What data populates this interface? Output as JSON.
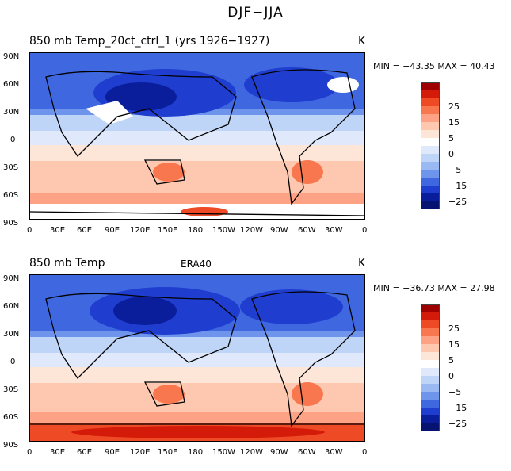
{
  "figure_title": "DJF−JJA",
  "panels": [
    {
      "title": "850  mb Temp_20ct_ctrl_1 (yrs 1926−1927)",
      "center": "",
      "unit": "K",
      "minmax": "MIN = −43.35  MAX =   40.43"
    },
    {
      "title": "850  mb Temp",
      "center": "ERA40",
      "unit": "K",
      "minmax": "MIN = −36.73  MAX =   27.98"
    }
  ],
  "lat_labels": [
    "90N",
    "60N",
    "30N",
    "0",
    "30S",
    "60S",
    "90S"
  ],
  "lon_labels": [
    "0",
    "30E",
    "60E",
    "90E",
    "120E",
    "150E",
    "180",
    "150W",
    "120W",
    "90W",
    "60W",
    "30W",
    "0"
  ],
  "colorbar": {
    "labels": [
      "25",
      "15",
      "5",
      "0",
      "−5",
      "−15",
      "−25"
    ],
    "colors": [
      "#9e0000",
      "#d41b0a",
      "#ee4a26",
      "#f8774f",
      "#fda285",
      "#fec8b0",
      "#fde6d8",
      "#ffffff",
      "#dfe9fb",
      "#bfd5f8",
      "#9ab9f2",
      "#6e95eb",
      "#3f67e0",
      "#1f3dcf",
      "#0a1e9c",
      "#061370"
    ]
  }
}
